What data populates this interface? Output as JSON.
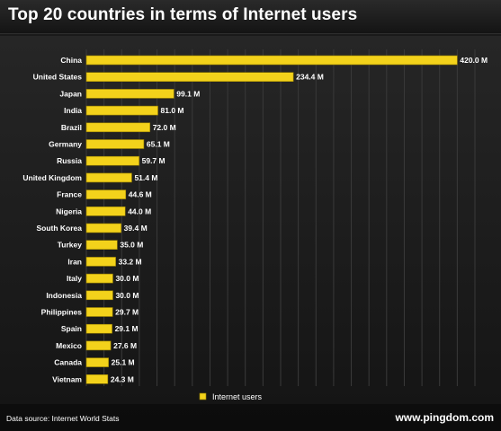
{
  "title": "Top 20 countries in terms of Internet users",
  "source_note": "Data source: Internet World Stats",
  "brand": "www.pingdom.com",
  "colors": {
    "bar": "#f3d21b",
    "bar_edge": "#9a8100",
    "background": "#1a1a1a",
    "grid": "#3a3a3a",
    "text": "#ffffff"
  },
  "chart_data": {
    "type": "bar",
    "orientation": "horizontal",
    "categories": [
      "China",
      "United States",
      "Japan",
      "India",
      "Brazil",
      "Germany",
      "Russia",
      "United Kingdom",
      "France",
      "Nigeria",
      "South Korea",
      "Turkey",
      "Iran",
      "Italy",
      "Indonesia",
      "Philippines",
      "Spain",
      "Mexico",
      "Canada",
      "Vietnam"
    ],
    "series": [
      {
        "name": "Internet users",
        "values": [
          420.0,
          234.4,
          99.1,
          81.0,
          72.0,
          65.1,
          59.7,
          51.4,
          44.6,
          44.0,
          39.4,
          35.0,
          33.2,
          30.0,
          30.0,
          29.7,
          29.1,
          27.6,
          25.1,
          24.3
        ],
        "labels": [
          "420.0 M",
          "234.4 M",
          "99.1 M",
          "81.0 M",
          "72.0 M",
          "65.1 M",
          "59.7 M",
          "51.4 M",
          "44.6 M",
          "44.0 M",
          "39.4 M",
          "35.0 M",
          "33.2 M",
          "30.0 M",
          "30.0 M",
          "29.7 M",
          "29.1 M",
          "27.6 M",
          "25.1 M",
          "24.3 M"
        ]
      }
    ],
    "xlim": [
      0,
      440
    ],
    "grid": true,
    "legend_position": "bottom-center"
  }
}
